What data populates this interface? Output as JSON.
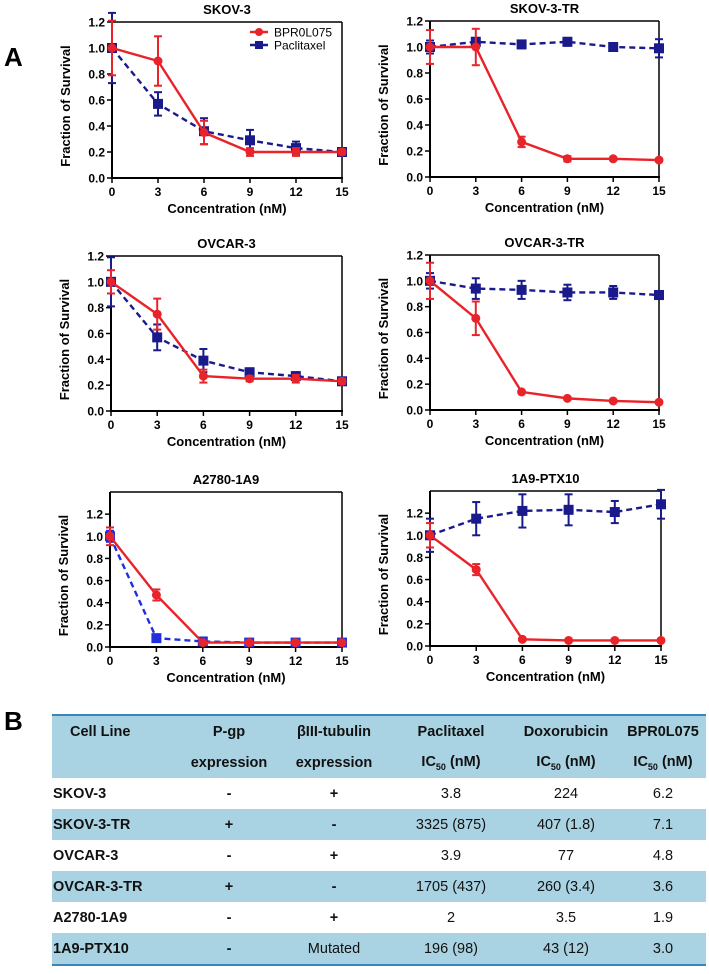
{
  "panels": {
    "a": "A",
    "b": "B"
  },
  "legend": {
    "series": [
      "BPR0L075",
      "Paclitaxel"
    ]
  },
  "colors": {
    "red": "#e8232a",
    "navy": "#1a1a8c",
    "blue": "#1f2fe0",
    "table_band": "#a9d3e2",
    "table_rule": "#3d84b8"
  },
  "chart_data": [
    {
      "type": "line",
      "title": "SKOV-3",
      "xlabel": "Concentration (nM)",
      "ylabel": "Fraction of Survival",
      "x": [
        0,
        3,
        6,
        9,
        12,
        15
      ],
      "xticks": [
        "0",
        "3",
        "6",
        "9",
        "12",
        "15"
      ],
      "yticks": [
        "0.0",
        "0.2",
        "0.4",
        "0.6",
        "0.8",
        "1.0",
        "1.2"
      ],
      "ylim": [
        0,
        1.2
      ],
      "legend": "top-right",
      "series": [
        {
          "name": "BPR0L075",
          "values": [
            1.0,
            0.9,
            0.35,
            0.2,
            0.2,
            0.2
          ],
          "err": [
            0.21,
            0.19,
            0.09,
            0.03,
            0.03,
            0.02
          ]
        },
        {
          "name": "Paclitaxel",
          "values": [
            1.0,
            0.57,
            0.36,
            0.29,
            0.23,
            0.2
          ],
          "err": [
            0.27,
            0.09,
            0.1,
            0.08,
            0.05,
            0.03
          ]
        }
      ]
    },
    {
      "type": "line",
      "title": "SKOV-3-TR",
      "xlabel": "Concentration (nM)",
      "ylabel": "Fraction of Survival",
      "x": [
        0,
        3,
        6,
        9,
        12,
        15
      ],
      "xticks": [
        "0",
        "3",
        "6",
        "9",
        "12",
        "15"
      ],
      "yticks": [
        "0.0",
        "0.2",
        "0.4",
        "0.6",
        "0.8",
        "1.0",
        "1.2"
      ],
      "ylim": [
        0,
        1.2
      ],
      "series": [
        {
          "name": "BPR0L075",
          "values": [
            1.0,
            1.0,
            0.27,
            0.14,
            0.14,
            0.13
          ],
          "err": [
            0.13,
            0.14,
            0.04,
            0.02,
            0.01,
            0.01
          ]
        },
        {
          "name": "Paclitaxel",
          "values": [
            1.0,
            1.04,
            1.02,
            1.04,
            1.0,
            0.99
          ],
          "err": [
            0.05,
            0.03,
            0.03,
            0.03,
            0.03,
            0.07
          ]
        }
      ]
    },
    {
      "type": "line",
      "title": "OVCAR-3",
      "xlabel": "Concentration (nM)",
      "ylabel": "Fraction of Survival",
      "x": [
        0,
        3,
        6,
        9,
        12,
        15
      ],
      "xticks": [
        "0",
        "3",
        "6",
        "9",
        "12",
        "15"
      ],
      "yticks": [
        "0.0",
        "0.2",
        "0.4",
        "0.6",
        "0.8",
        "1.0",
        "1.2"
      ],
      "ylim": [
        0,
        1.2
      ],
      "series": [
        {
          "name": "BPR0L075",
          "values": [
            1.0,
            0.75,
            0.27,
            0.25,
            0.25,
            0.23
          ],
          "err": [
            0.09,
            0.12,
            0.05,
            0.02,
            0.03,
            0.02
          ]
        },
        {
          "name": "Paclitaxel",
          "values": [
            1.0,
            0.57,
            0.39,
            0.3,
            0.27,
            0.23
          ],
          "err": [
            0.19,
            0.1,
            0.09,
            0.03,
            0.03,
            0.02
          ]
        }
      ]
    },
    {
      "type": "line",
      "title": "OVCAR-3-TR",
      "xlabel": "Concentration (nM)",
      "ylabel": "Fraction of Survival",
      "x": [
        0,
        3,
        6,
        9,
        12,
        15
      ],
      "xticks": [
        "0",
        "3",
        "6",
        "9",
        "12",
        "15"
      ],
      "yticks": [
        "0.0",
        "0.2",
        "0.4",
        "0.6",
        "0.8",
        "1.0",
        "1.2"
      ],
      "ylim": [
        0,
        1.2
      ],
      "series": [
        {
          "name": "BPR0L075",
          "values": [
            1.0,
            0.71,
            0.14,
            0.09,
            0.07,
            0.06
          ],
          "err": [
            0.14,
            0.13,
            0.01,
            0.01,
            0.01,
            0.01
          ]
        },
        {
          "name": "Paclitaxel",
          "values": [
            1.0,
            0.94,
            0.93,
            0.91,
            0.91,
            0.89
          ],
          "err": [
            0.06,
            0.08,
            0.07,
            0.06,
            0.05,
            0.03
          ]
        }
      ]
    },
    {
      "type": "line",
      "title": "A2780-1A9",
      "xlabel": "Concentration (nM)",
      "ylabel": "Fraction of Survival",
      "x": [
        0,
        3,
        6,
        9,
        12,
        15
      ],
      "xticks": [
        "0",
        "3",
        "6",
        "9",
        "12",
        "15"
      ],
      "yticks": [
        "0.0",
        "0.2",
        "0.4",
        "0.6",
        "0.8",
        "1.0",
        "1.2"
      ],
      "ylim": [
        0,
        1.4
      ],
      "series": [
        {
          "name": "BPR0L075",
          "values": [
            1.0,
            0.47,
            0.04,
            0.04,
            0.04,
            0.04
          ],
          "err": [
            0.08,
            0.05,
            0.01,
            0.01,
            0.01,
            0.01
          ]
        },
        {
          "name": "Paclitaxel",
          "values": [
            1.0,
            0.08,
            0.05,
            0.04,
            0.04,
            0.04
          ],
          "err": [
            0.05,
            0.02,
            0.01,
            0.01,
            0.01,
            0.01
          ]
        }
      ]
    },
    {
      "type": "line",
      "title": "1A9-PTX10",
      "xlabel": "Concentration (nM)",
      "ylabel": "Fraction of Survival",
      "x": [
        0,
        3,
        6,
        9,
        12,
        15
      ],
      "xticks": [
        "0",
        "3",
        "6",
        "9",
        "12",
        "15"
      ],
      "yticks": [
        "0.0",
        "0.2",
        "0.4",
        "0.6",
        "0.8",
        "1.0",
        "1.2"
      ],
      "ylim": [
        0,
        1.4
      ],
      "series": [
        {
          "name": "BPR0L075",
          "values": [
            1.0,
            0.69,
            0.06,
            0.05,
            0.05,
            0.05
          ],
          "err": [
            0.11,
            0.05,
            0.01,
            0.01,
            0.01,
            0.01
          ]
        },
        {
          "name": "Paclitaxel",
          "values": [
            1.0,
            1.15,
            1.22,
            1.23,
            1.21,
            1.28
          ],
          "err": [
            0.15,
            0.15,
            0.15,
            0.14,
            0.1,
            0.13
          ]
        }
      ]
    }
  ],
  "table": {
    "headers": [
      {
        "line1": "Cell Line",
        "line2": ""
      },
      {
        "line1": "P-gp",
        "line2": "expression"
      },
      {
        "line1": "βIII-tubulin",
        "line2": "expression"
      },
      {
        "line1": "Paclitaxel",
        "ic": "IC",
        "sub": "50",
        "unit": " (nM)"
      },
      {
        "line1": "Doxorubicin",
        "ic": "IC",
        "sub": "50",
        "unit": " (nM)"
      },
      {
        "line1": "BPR0L075",
        "ic": "IC",
        "sub": "50",
        "unit": " (nM)"
      }
    ],
    "rows": [
      [
        "SKOV-3",
        "-",
        "+",
        "3.8",
        "224",
        "6.2"
      ],
      [
        "SKOV-3-TR",
        "+",
        "-",
        "3325 (875)",
        "407 (1.8)",
        "7.1"
      ],
      [
        "OVCAR-3",
        "-",
        "+",
        "3.9",
        "77",
        "4.8"
      ],
      [
        "OVCAR-3-TR",
        "+",
        "-",
        "1705 (437)",
        "260 (3.4)",
        "3.6"
      ],
      [
        "A2780-1A9",
        "-",
        "+",
        "2",
        "3.5",
        "1.9"
      ],
      [
        "1A9-PTX10",
        "-",
        "Mutated",
        "196 (98)",
        "43 (12)",
        "3.0"
      ]
    ]
  }
}
